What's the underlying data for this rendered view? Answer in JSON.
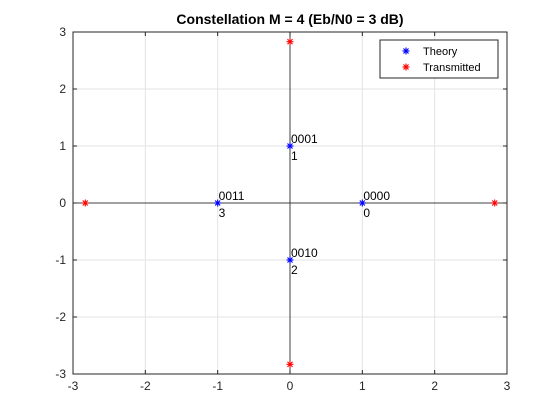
{
  "chart_data": {
    "type": "scatter",
    "title": "Constellation M = 4 (Eb/N0 = 3 dB)",
    "xlabel": "",
    "ylabel": "",
    "xlim": [
      -3,
      3
    ],
    "ylim": [
      -3,
      3
    ],
    "xticks": [
      -3,
      -2,
      -1,
      0,
      1,
      2,
      3
    ],
    "yticks": [
      -3,
      -2,
      -1,
      0,
      1,
      2,
      3
    ],
    "grid": true,
    "axes_lines": true,
    "legend": "top-right",
    "series": [
      {
        "name": "Theory",
        "color": "#0000ff",
        "marker": "asterisk",
        "points": [
          {
            "x": 1,
            "y": 0
          },
          {
            "x": 0,
            "y": 1
          },
          {
            "x": 0,
            "y": -1
          },
          {
            "x": -1,
            "y": 0
          }
        ]
      },
      {
        "name": "Transmitted",
        "color": "#ff0000",
        "marker": "asterisk",
        "points": [
          {
            "x": 2.83,
            "y": 0
          },
          {
            "x": 0,
            "y": 2.83
          },
          {
            "x": 0,
            "y": -2.83
          },
          {
            "x": -2.83,
            "y": 0
          }
        ]
      }
    ],
    "annotations": [
      {
        "x": 1,
        "y": 0,
        "code": "0000",
        "index": "0"
      },
      {
        "x": 0,
        "y": 1,
        "code": "0001",
        "index": "1"
      },
      {
        "x": 0,
        "y": -1,
        "code": "0010",
        "index": "2"
      },
      {
        "x": -1,
        "y": 0,
        "code": "0011",
        "index": "3"
      }
    ]
  }
}
